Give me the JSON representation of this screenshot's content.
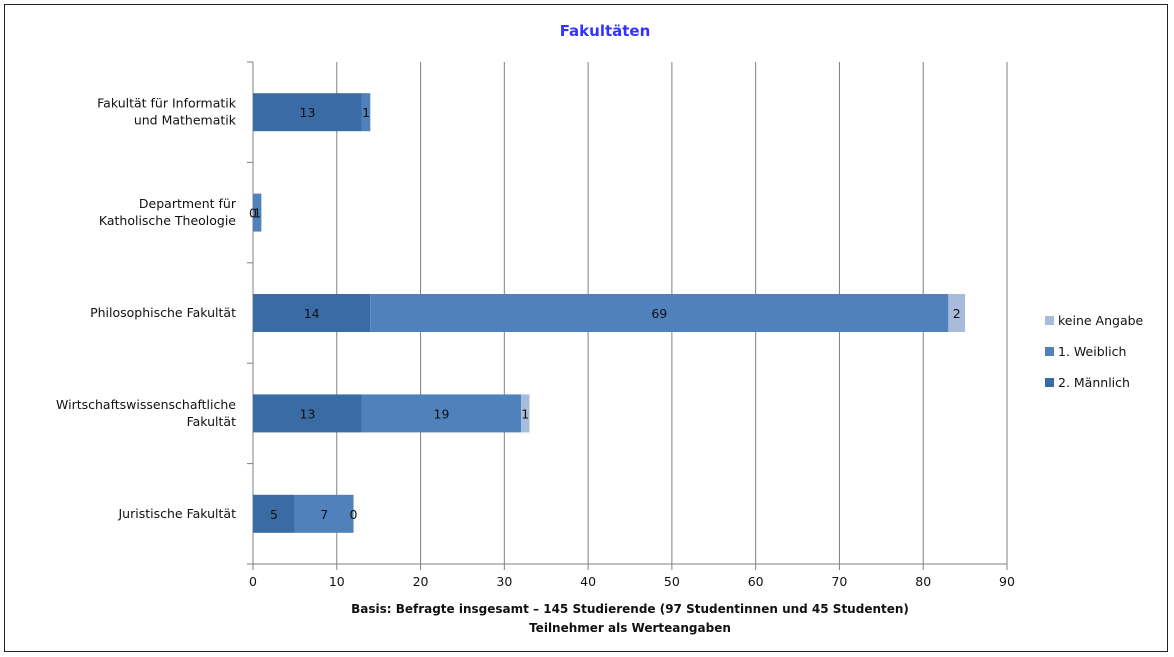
{
  "chart_data": {
    "type": "bar",
    "orientation": "horizontal",
    "stacked": true,
    "title": "Fakultäten",
    "categories": [
      [
        "Fakultät für Informatik",
        "und Mathematik"
      ],
      [
        "Department für",
        "Katholische Theologie"
      ],
      [
        "Philosophische Fakultät"
      ],
      [
        "Wirtschaftswissenschaftliche",
        "Fakultät"
      ],
      [
        "Juristische Fakultät"
      ]
    ],
    "series": [
      {
        "name": "2. Männlich",
        "color": "#3a6ba5",
        "values": [
          13,
          0,
          14,
          13,
          5
        ]
      },
      {
        "name": "1. Weiblich",
        "color": "#4f81bd",
        "values": [
          1,
          1,
          69,
          19,
          7
        ]
      },
      {
        "name": "keine Angabe",
        "color": "#a9bbdb",
        "values": [
          0,
          0,
          2,
          1,
          0
        ]
      }
    ],
    "data_labels": [
      [
        "13",
        "1",
        ""
      ],
      [
        "0",
        "1",
        ""
      ],
      [
        "14",
        "69",
        "2"
      ],
      [
        "13",
        "19",
        "1"
      ],
      [
        "5",
        "7",
        "0"
      ]
    ],
    "xlim": [
      0,
      90
    ],
    "xticks": [
      0,
      10,
      20,
      30,
      40,
      50,
      60,
      70,
      80,
      90
    ],
    "grid": true,
    "legend_position": "right",
    "notes": [
      "Basis:  Befragte insgesamt – 145 Studierende (97 Studentinnen und 45 Studenten)",
      "Teilnehmer als Werteangaben"
    ]
  }
}
